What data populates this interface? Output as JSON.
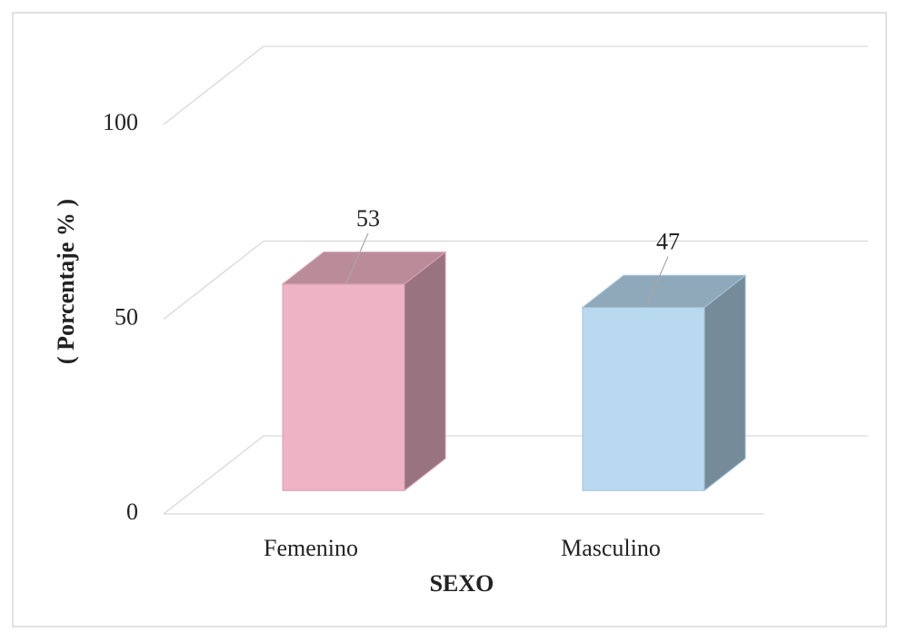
{
  "chart_data": {
    "type": "bar3d",
    "x_label": "SEXO",
    "y_label": "( Porcentaje % )",
    "categories": [
      "Femenino",
      "Masculino"
    ],
    "values": [
      53,
      47
    ],
    "colors": [
      "#efb3c6",
      "#b8d9ef"
    ],
    "ylim": [
      0,
      100
    ],
    "yticks": [
      0,
      50,
      100
    ],
    "grid": true
  }
}
